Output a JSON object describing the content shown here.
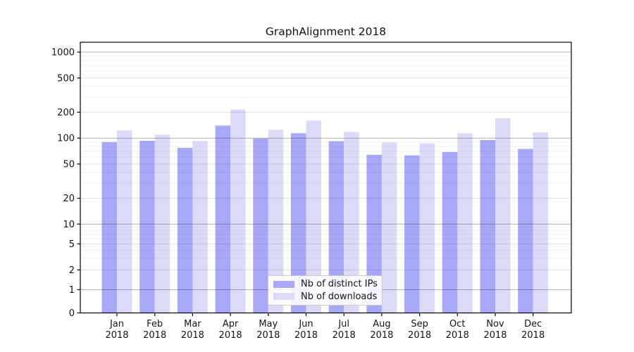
{
  "chart_data": {
    "type": "bar",
    "title": "GraphAlignment 2018",
    "categories": [
      "Jan 2018",
      "Feb 2018",
      "Mar 2018",
      "Apr 2018",
      "May 2018",
      "Jun 2018",
      "Jul 2018",
      "Aug 2018",
      "Sep 2018",
      "Oct 2018",
      "Nov 2018",
      "Dec 2018"
    ],
    "series": [
      {
        "name": "Nb of distinct IPs",
        "color": "#a8a8f8",
        "values": [
          90,
          93,
          77,
          140,
          99,
          114,
          92,
          64,
          63,
          69,
          95,
          75
        ]
      },
      {
        "name": "Nb of downloads",
        "color": "#dbdbf9",
        "values": [
          123,
          110,
          92,
          215,
          125,
          160,
          118,
          89,
          87,
          114,
          170,
          117
        ]
      }
    ],
    "y_axis": {
      "scale": "symlog",
      "tick_labels": [
        "0",
        "1",
        "2",
        "5",
        "10",
        "20",
        "50",
        "100",
        "200",
        "500",
        "1000"
      ],
      "ticks": [
        0,
        1,
        2,
        5,
        10,
        20,
        50,
        100,
        200,
        500,
        1000
      ],
      "range": [
        0,
        1300
      ]
    },
    "x_axis": {
      "label_lines": 2
    },
    "legend": {
      "position": "lower center",
      "entries": [
        "Nb of distinct IPs",
        "Nb of downloads"
      ]
    },
    "grid": {
      "horizontal": true,
      "minor": true
    }
  }
}
